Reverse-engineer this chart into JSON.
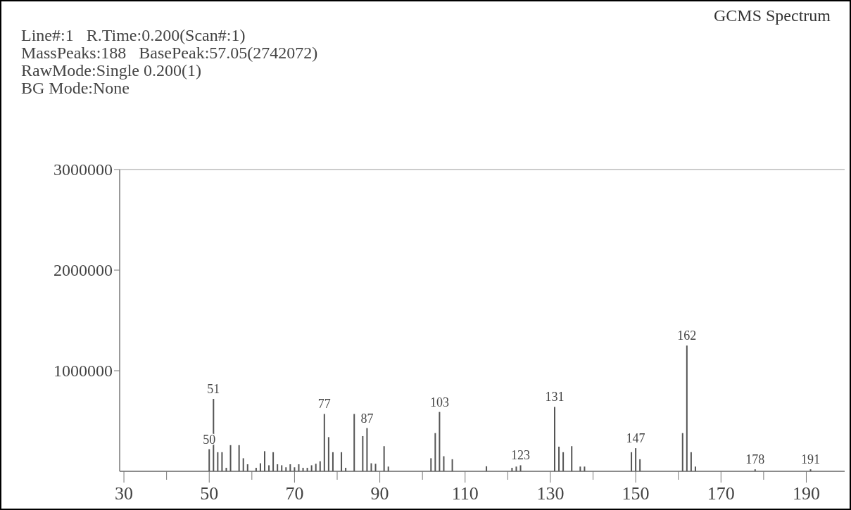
{
  "chart_data": {
    "type": "bar",
    "title": "GCMS Spectrum",
    "annotations": [
      "Line#:1   R.Time:0.200(Scan#:1)",
      "MassPeaks:188   BasePeak:57.05(2742072)",
      "RawMode:Single 0.200(1)",
      "BG Mode:None",
      {
        "text": "50",
        "x": 50,
        "y": 220000
      },
      {
        "text": "51",
        "x": 51,
        "y": 720000
      },
      {
        "text": "77",
        "x": 77,
        "y": 570000
      },
      {
        "text": "87",
        "x": 87,
        "y": 430000
      },
      {
        "text": "103",
        "x": 104,
        "y": 590000
      },
      {
        "text": "123",
        "x": 123,
        "y": 60000
      },
      {
        "text": "131",
        "x": 131,
        "y": 640000
      },
      {
        "text": "147",
        "x": 150,
        "y": 230000
      },
      {
        "text": "162",
        "x": 162,
        "y": 1250000
      },
      {
        "text": "178",
        "x": 178,
        "y": 20000
      },
      {
        "text": "191",
        "x": 191,
        "y": 20000
      }
    ],
    "x": [
      50,
      51,
      52,
      53,
      54,
      55,
      57,
      58,
      59,
      61,
      62,
      63,
      64,
      65,
      66,
      67,
      68,
      69,
      70,
      71,
      72,
      73,
      74,
      75,
      76,
      77,
      78,
      79,
      81,
      82,
      84,
      86,
      87,
      88,
      89,
      91,
      92,
      102,
      103,
      104,
      105,
      107,
      115,
      121,
      122,
      123,
      131,
      132,
      133,
      135,
      137,
      138,
      149,
      150,
      151,
      161,
      162,
      163,
      164,
      178,
      191
    ],
    "values": [
      220000,
      720000,
      190000,
      190000,
      35000,
      260000,
      260000,
      130000,
      70000,
      35000,
      80000,
      200000,
      60000,
      190000,
      70000,
      60000,
      40000,
      70000,
      40000,
      70000,
      35000,
      35000,
      60000,
      75000,
      100000,
      570000,
      340000,
      190000,
      190000,
      35000,
      570000,
      350000,
      430000,
      80000,
      75000,
      250000,
      47000,
      130000,
      380000,
      590000,
      150000,
      120000,
      50000,
      35000,
      47000,
      60000,
      640000,
      245000,
      190000,
      250000,
      47000,
      47000,
      190000,
      230000,
      120000,
      380000,
      1250000,
      190000,
      47000,
      20000,
      20000
    ],
    "color": "#555555",
    "xlim": [
      29,
      199
    ],
    "xticks": [
      30,
      {
        "value": 40,
        "label": null
      },
      50,
      {
        "value": 60,
        "label": null
      },
      70,
      {
        "value": 80,
        "label": null
      },
      90,
      {
        "value": 100,
        "label": null
      },
      110,
      {
        "value": 120,
        "label": null
      },
      130,
      {
        "value": 140,
        "label": null
      },
      150,
      {
        "value": 160,
        "label": null
      },
      170,
      {
        "value": 180,
        "label": null
      },
      190
    ],
    "ylim": [
      0,
      3000000
    ],
    "yticks": [
      1000000,
      2000000,
      3000000
    ]
  }
}
